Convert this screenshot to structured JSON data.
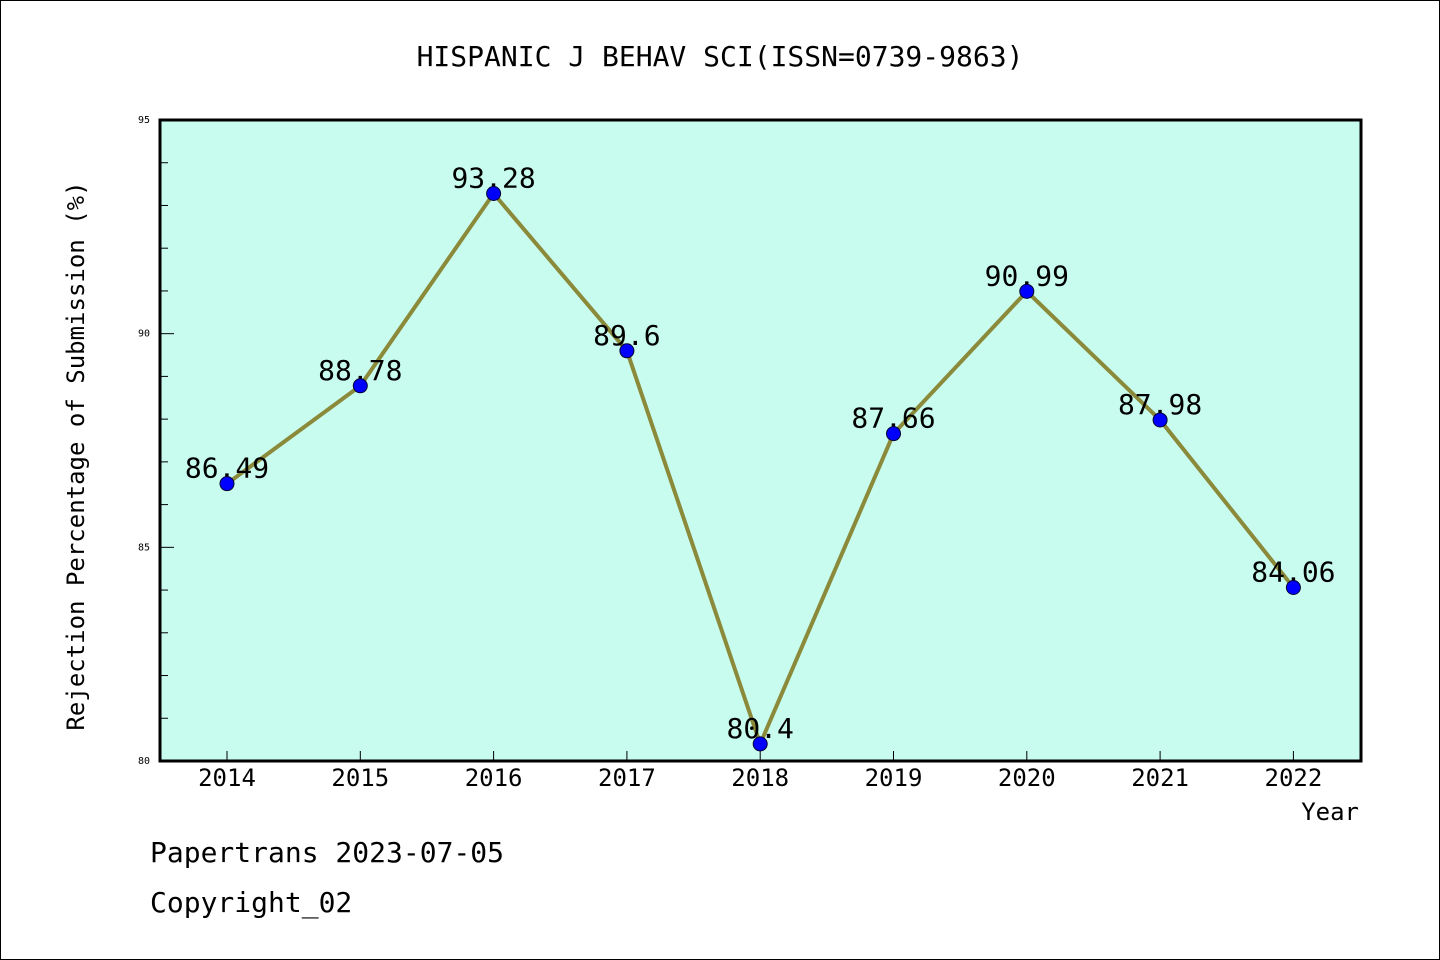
{
  "chart_data": {
    "type": "line",
    "title": "HISPANIC J BEHAV SCI(ISSN=0739-9863)",
    "xlabel": "Year",
    "ylabel": "Rejection Percentage of Submission (%)",
    "categories": [
      "2014",
      "2015",
      "2016",
      "2017",
      "2018",
      "2019",
      "2020",
      "2021",
      "2022"
    ],
    "values": [
      86.49,
      88.78,
      93.28,
      89.6,
      80.4,
      87.66,
      90.99,
      87.98,
      84.06
    ],
    "data_labels": [
      "86.49",
      "88.78",
      "93.28",
      "89.6",
      "80.4",
      "87.66",
      "90.99",
      "87.98",
      "84.06"
    ],
    "ylim": [
      80,
      95
    ],
    "yticks": [
      80,
      85,
      90,
      95
    ],
    "ytick_labels": [
      "80",
      "85",
      "90",
      "95"
    ],
    "grid": false,
    "colors": {
      "plot_background": "#c8fcee",
      "line": "#8b8a3a",
      "marker": "#0000ff"
    }
  },
  "footer": {
    "line1": "Papertrans 2023-07-05",
    "line2": "Copyright_02"
  }
}
